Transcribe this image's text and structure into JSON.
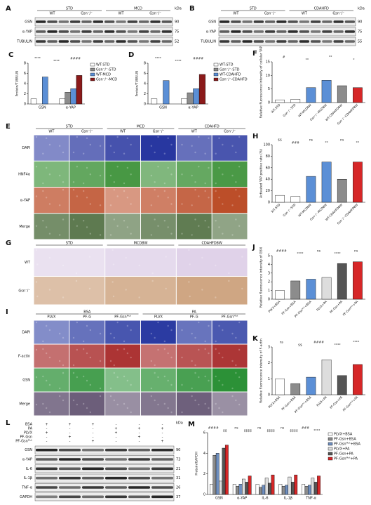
{
  "figure": {
    "blots": [
      {
        "label": "A",
        "groups": [
          "STD",
          "MCD"
        ],
        "genotypes": [
          "WT",
          "Gsn⁻/⁻",
          "WT",
          "Gsn⁻/⁻"
        ],
        "rows": [
          "GSN",
          "α-YAP",
          "TUBULIN"
        ],
        "kda_label": "kDa",
        "kda": [
          90,
          75,
          52
        ]
      },
      {
        "label": "B",
        "groups": [
          "STD",
          "CDAHFD"
        ],
        "genotypes": [
          "WT",
          "Gsn⁻/⁻",
          "WT",
          "Gsn⁻/⁻"
        ],
        "rows": [
          "GSN",
          "α-YAP",
          "TUBULIN"
        ],
        "kda_label": "kDa",
        "kda": [
          90,
          75,
          55
        ]
      },
      {
        "label": "L",
        "conditions": [
          {
            "name": "BSA",
            "signs": [
              "+",
              "+",
              "+",
              "-",
              "-",
              "-"
            ]
          },
          {
            "name": "PA",
            "signs": [
              "-",
              "-",
              "-",
              "+",
              "+",
              "+"
            ]
          },
          {
            "name": "PLVX",
            "signs": [
              "+",
              "-",
              "-",
              "+",
              "-",
              "-"
            ]
          },
          {
            "name": "PF-Gsn",
            "signs": [
              "-",
              "+",
              "-",
              "-",
              "+",
              "-"
            ]
          },
          {
            "name": "PF-Gsnᴹᵘᵗ",
            "signs": [
              "-",
              "-",
              "+",
              "-",
              "-",
              "+"
            ]
          }
        ],
        "rows": [
          "GSN",
          "α-YAP",
          "IL-6",
          "IL-1β",
          "TNF-α",
          "GAPDH"
        ],
        "kda_label": "kDa",
        "kda": [
          90,
          73,
          21,
          31,
          26,
          37
        ]
      }
    ],
    "images": [
      {
        "label": "E",
        "groups": [
          "STD",
          "MCD",
          "CDAHFD"
        ],
        "columns": [
          "WT",
          "Gsn⁻/⁻",
          "WT",
          "Gsn⁻/⁻",
          "WT",
          "Gsn⁻/⁻"
        ],
        "rows": [
          "DAPI",
          "HNF4α",
          "α-YAP",
          "Merge"
        ],
        "tints": [
          "#1b2a9a",
          "#2f8a2a",
          "#b8431c",
          "#4a6a3a"
        ]
      },
      {
        "label": "G",
        "groups": [
          "STD",
          "MCD8W",
          "CDAHFD8W"
        ],
        "rows": [
          "WT",
          "Gsn⁻/⁻"
        ],
        "tints": [
          "#d9c8e4",
          "#c89a72"
        ]
      },
      {
        "label": "I",
        "groups": [
          "BSA",
          "PA"
        ],
        "columns": [
          "PLVX",
          "PF-G",
          "PF-Gsnᴹᵘᵗ",
          "PLVX",
          "PF-G",
          "PF-Gsnᴹᵘᵗ"
        ],
        "rows": [
          "DAPI",
          "F-actin",
          "GSN",
          "Merge"
        ],
        "tints": [
          "#1e2f9c",
          "#a01818",
          "#1f8a2a",
          "#5a4a6a"
        ]
      }
    ]
  },
  "chart_data": [
    {
      "type": "bar",
      "label": "C",
      "ylabel": "Protein/TUBULIN",
      "categories": [
        "GSN",
        "α-YAP"
      ],
      "series": [
        {
          "name": "WT-STD",
          "color": "#ffffff",
          "values": [
            1,
            1
          ]
        },
        {
          "name": "Gsn⁻/⁻-STD",
          "color": "#8c8c8c",
          "values": [
            0,
            2.3
          ]
        },
        {
          "name": "WT-MCD",
          "color": "#5b8fd6",
          "values": [
            5.3,
            3
          ]
        },
        {
          "name": "Gsn⁻/⁻-MCD",
          "color": "#8b1a1a",
          "values": [
            0,
            5.6
          ]
        }
      ],
      "ylim": [
        0,
        8
      ],
      "yticks": [
        0,
        2,
        4,
        6,
        8
      ],
      "annotations": [
        "****",
        "****",
        "####"
      ],
      "legend": "right"
    },
    {
      "type": "bar",
      "label": "D",
      "ylabel": "Protein/TUBULIN",
      "categories": [
        "GSN",
        "α-YAP"
      ],
      "series": [
        {
          "name": "WT-STD",
          "color": "#ffffff",
          "values": [
            1,
            1
          ]
        },
        {
          "name": "Gsn⁻/⁻-STD",
          "color": "#8c8c8c",
          "values": [
            0,
            2.2
          ]
        },
        {
          "name": "WT-CDAHFD",
          "color": "#5b8fd6",
          "values": [
            4.6,
            3
          ]
        },
        {
          "name": "Gsn⁻/⁻-CDAHFD",
          "color": "#8b1a1a",
          "values": [
            0,
            5.8
          ]
        }
      ],
      "ylim": [
        0,
        8
      ],
      "yticks": [
        0,
        2,
        4,
        6,
        8
      ],
      "annotations": [
        "****",
        "****",
        "####"
      ],
      "legend": "right"
    },
    {
      "type": "bar",
      "label": "F",
      "ylabel": "Relative fluorescence intensity of cellular YAP",
      "categories": [
        "WT-STD",
        "Gsn⁻/⁻-STD",
        "WT-MCD8W",
        "Gsn⁻/⁻-MCD8W",
        "WT-CDAHFD8W",
        "Gsn⁻/⁻-CDAHFD8W"
      ],
      "values": [
        1,
        1.2,
        5.5,
        8.2,
        6.2,
        5.5
      ],
      "colors": [
        "#ffffff",
        "#ffffff",
        "#5b8fd6",
        "#5b8fd6",
        "#8c8c8c",
        "#d62728"
      ],
      "ylim": [
        0,
        15
      ],
      "yticks": [
        0,
        5,
        10,
        15
      ],
      "annotations": [
        "#",
        "**",
        "**",
        "*"
      ]
    },
    {
      "type": "bar",
      "label": "H",
      "ylabel": "Activated YAP positive rate (%)",
      "categories": [
        "WT-STD",
        "Gsn⁻/⁻-STD",
        "WT-MCD8W",
        "Gsn⁻/⁻-MCD8W",
        "WT-CDAHFD8W",
        "Gsn⁻/⁻-CDAHFD8W"
      ],
      "values": [
        12,
        10,
        45,
        70,
        40,
        70
      ],
      "colors": [
        "#ffffff",
        "#ffffff",
        "#5b8fd6",
        "#5b8fd6",
        "#8c8c8c",
        "#d62728"
      ],
      "ylim": [
        0,
        100
      ],
      "yticks": [
        0,
        20,
        40,
        60,
        80,
        100
      ],
      "annotations": [
        "$$",
        "###",
        "ns",
        "**",
        "ns",
        "**"
      ]
    },
    {
      "type": "bar",
      "label": "J",
      "ylabel": "Relative fluorescence intensity of GSN",
      "categories": [
        "PLVX+BSA",
        "PF-Gsn+BSA",
        "PF-Gsnᴹᵘᵗ+BSA",
        "PLVX+PA",
        "PF-Gsn+PA",
        "PF-Gsnᴹᵘᵗ+PA"
      ],
      "values": [
        1,
        2.1,
        2.3,
        2.5,
        4.1,
        4.3
      ],
      "colors": [
        "#ffffff",
        "#8c8c8c",
        "#5b8fd6",
        "#dddddd",
        "#555555",
        "#d62728"
      ],
      "ylim": [
        0,
        5
      ],
      "yticks": [
        0,
        1,
        2,
        3,
        4,
        5
      ],
      "annotations": [
        "####",
        "****",
        "ns",
        "****",
        "ns"
      ]
    },
    {
      "type": "bar",
      "label": "K",
      "ylabel": "Relative fluorescence intensity of F-actin",
      "categories": [
        "PLVX+BSA",
        "PF-Gsn+BSA",
        "PF-Gsnᴹᵘᵗ+BSA",
        "PLVX+PA",
        "PF-Gsn+PA",
        "PF-Gsnᴹᵘᵗ+PA"
      ],
      "values": [
        1,
        0.7,
        1.1,
        2.2,
        1.2,
        1.9
      ],
      "colors": [
        "#ffffff",
        "#8c8c8c",
        "#5b8fd6",
        "#dddddd",
        "#555555",
        "#d62728"
      ],
      "ylim": [
        0,
        3
      ],
      "yticks": [
        0,
        1,
        2,
        3
      ],
      "annotations": [
        "ns",
        "$$",
        "####",
        "****",
        "****"
      ]
    },
    {
      "type": "bar",
      "label": "M",
      "ylabel": "Protein/GAPDH",
      "categories": [
        "GSN",
        "α-YAP",
        "IL-6",
        "IL-1β",
        "TNF-α"
      ],
      "series": [
        {
          "name": "PLVX+BSA",
          "color": "#ffffff",
          "values": [
            1,
            1,
            1,
            1,
            1
          ]
        },
        {
          "name": "PF-Gsn+BSA",
          "color": "#8c8c8c",
          "values": [
            3.8,
            0.8,
            0.7,
            0.8,
            0.8
          ]
        },
        {
          "name": "PF-Gsnᴹᵘᵗ+BSA",
          "color": "#6f8fbf",
          "values": [
            4,
            1,
            0.9,
            0.9,
            0.9
          ]
        },
        {
          "name": "PLVX+PA",
          "color": "#dddddd",
          "values": [
            1.3,
            1.5,
            1.6,
            1.7,
            1.6
          ]
        },
        {
          "name": "PF-Gsn+PA",
          "color": "#555555",
          "values": [
            4.5,
            1.2,
            1.1,
            1.2,
            1.2
          ]
        },
        {
          "name": "PF-Gsnᴹᵘᵗ+PA",
          "color": "#d62728",
          "values": [
            4.8,
            1.8,
            1.9,
            1.9,
            1.8
          ]
        }
      ],
      "ylim": [
        0,
        6
      ],
      "yticks": [
        0,
        2,
        4,
        6
      ],
      "annotations": [
        "####",
        "$$",
        "ns",
        "$$$$",
        "ns",
        "$$$$",
        "ns",
        "$$$$",
        "###",
        "****"
      ],
      "legend": "right"
    }
  ]
}
